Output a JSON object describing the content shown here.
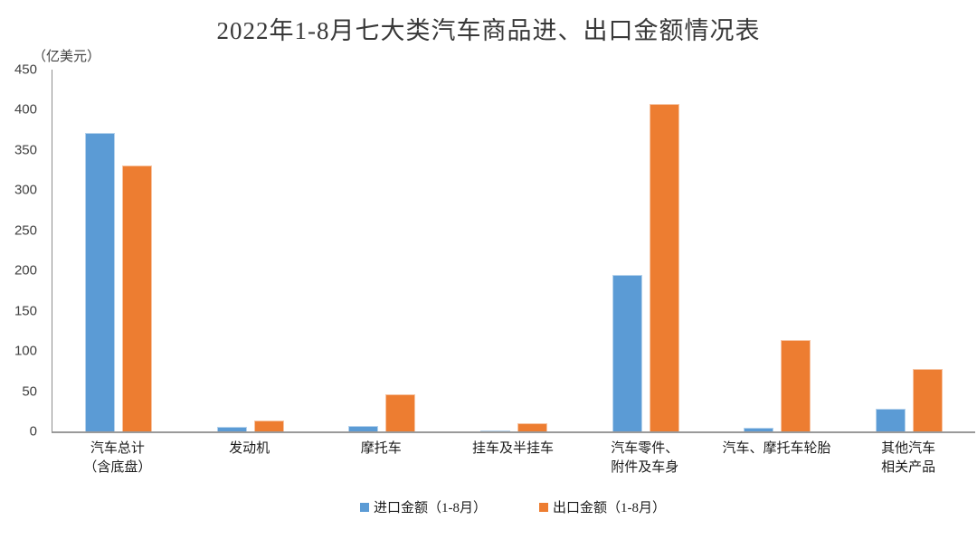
{
  "title": "2022年1-8月七大类汽车商品进、出口金额情况表",
  "unit_label": "（亿美元）",
  "colors": {
    "import_blue": "#5B9BD5",
    "export_orange": "#ED7D31",
    "axis_gray": "#8C8C8C",
    "text_dark": "#404040"
  },
  "chart_data": {
    "type": "bar",
    "title": "2022年1-8月七大类汽车商品进、出口金额情况表",
    "ylabel": "（亿美元）",
    "ylim": [
      0,
      450
    ],
    "ytick_interval": 50,
    "yticks": [
      0,
      50,
      100,
      150,
      200,
      250,
      300,
      350,
      400,
      450
    ],
    "grid": false,
    "legend_position": "bottom",
    "categories": [
      "汽车总计（含底盘）",
      "发动机",
      "摩托车",
      "挂车及半挂车",
      "汽车零件、附件及车身",
      "汽车、摩托车轮胎",
      "其他汽车相关产品"
    ],
    "category_display_lines": [
      [
        "汽车总计",
        "（含底盘）"
      ],
      [
        "发动机"
      ],
      [
        "摩托车"
      ],
      [
        "挂车及半挂车"
      ],
      [
        "汽车零件、",
        "附件及车身"
      ],
      [
        "汽车、摩托车轮胎"
      ],
      [
        "其他汽车",
        "相关产品"
      ]
    ],
    "series": [
      {
        "name": "进口金额（1-8月）",
        "key": "import",
        "color": "#5B9BD5",
        "values": [
          371,
          6,
          7,
          1,
          195,
          5,
          28
        ]
      },
      {
        "name": "出口金额（1-8月）",
        "key": "export",
        "color": "#ED7D31",
        "values": [
          331,
          14,
          46,
          10,
          407,
          114,
          78
        ]
      }
    ]
  }
}
